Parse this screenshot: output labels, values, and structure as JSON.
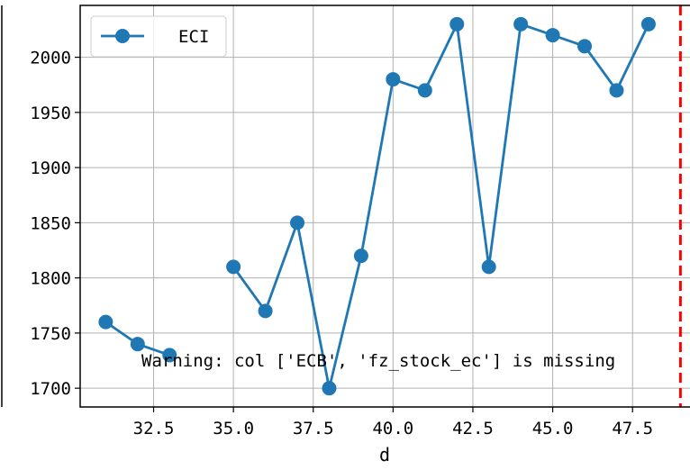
{
  "chart_data": {
    "type": "line",
    "xlabel": "d",
    "ylabel": "",
    "xlim": [
      30.2,
      49.3
    ],
    "ylim": [
      1683,
      2047
    ],
    "xticks": [
      32.5,
      35.0,
      37.5,
      40.0,
      42.5,
      45.0,
      47.5
    ],
    "xtick_labels": [
      "32.5",
      "35.0",
      "37.5",
      "40.0",
      "42.5",
      "45.0",
      "47.5"
    ],
    "yticks": [
      1700,
      1750,
      1800,
      1850,
      1900,
      1950,
      2000
    ],
    "ytick_labels": [
      "1700",
      "1750",
      "1800",
      "1850",
      "1900",
      "1950",
      "2000"
    ],
    "grid": true,
    "legend_position": "top-left",
    "series": [
      {
        "name": "ECI",
        "color": "#1f77b4",
        "marker": "circle",
        "segments": [
          {
            "x": [
              31,
              32,
              33
            ],
            "y": [
              1760,
              1740,
              1730
            ]
          },
          {
            "x": [
              35,
              36,
              37,
              38,
              39,
              40,
              41,
              42,
              43,
              44,
              45,
              46,
              47,
              48
            ],
            "y": [
              1810,
              1770,
              1850,
              1700,
              1820,
              1980,
              1970,
              2030,
              1810,
              2030,
              2020,
              2010,
              1970,
              2030
            ]
          }
        ]
      }
    ],
    "vline": {
      "x": 49,
      "color": "#ff0000",
      "style": "dashed"
    },
    "annotation": "Warning: col ['ECB', 'fz_stock_ec'] is missing"
  }
}
